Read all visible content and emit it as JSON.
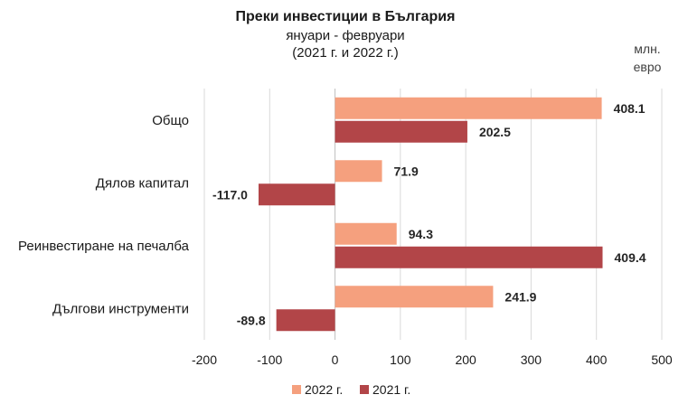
{
  "chart_data": {
    "type": "bar",
    "orientation": "horizontal",
    "title": "Преки  инвестиции в България",
    "subtitle_line1": "януари - февруари",
    "subtitle_line2": "(2021 г. и 2022 г.)",
    "unit_line1": "млн.",
    "unit_line2": "евро",
    "categories": [
      "Общо",
      "Дялов капитал",
      "Реинвестиране на печалба",
      "Дългови инструменти"
    ],
    "series": [
      {
        "name": "2022 г.",
        "color": "#f5a07e",
        "values": [
          408.1,
          71.9,
          94.3,
          241.9
        ],
        "labels": [
          "408.1",
          "71.9",
          "94.3",
          "241.9"
        ]
      },
      {
        "name": "2021 г.",
        "color": "#b24548",
        "values": [
          202.5,
          -117.0,
          409.4,
          -89.8
        ],
        "labels": [
          "202.5",
          "-117.0",
          "409.4",
          "-89.8"
        ]
      }
    ],
    "xlim": [
      -200,
      500
    ],
    "xticks": [
      "-200",
      "-100",
      "0",
      "100",
      "200",
      "300",
      "400",
      "500"
    ],
    "legend_position": "bottom",
    "grid": true
  }
}
